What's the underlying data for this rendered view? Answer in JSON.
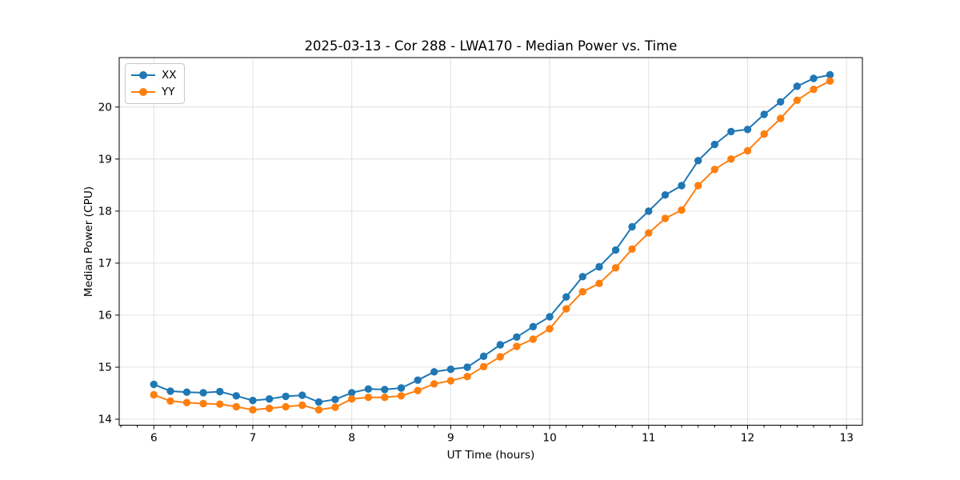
{
  "chart_data": {
    "type": "line",
    "title": "2025-03-13 - Cor 288 - LWA170 - Median Power vs. Time",
    "xlabel": "UT Time (hours)",
    "ylabel": "Median Power (CPU)",
    "x": [
      6.0,
      6.167,
      6.333,
      6.5,
      6.667,
      6.833,
      7.0,
      7.167,
      7.333,
      7.5,
      7.667,
      7.833,
      8.0,
      8.167,
      8.333,
      8.5,
      8.667,
      8.833,
      9.0,
      9.167,
      9.333,
      9.5,
      9.667,
      9.833,
      10.0,
      10.167,
      10.333,
      10.5,
      10.667,
      10.833,
      11.0,
      11.167,
      11.333,
      11.5,
      11.667,
      11.833,
      12.0,
      12.167,
      12.333,
      12.5,
      12.667,
      12.833
    ],
    "series": [
      {
        "name": "XX",
        "color": "#1f77b4",
        "values": [
          14.67,
          14.54,
          14.52,
          14.51,
          14.53,
          14.45,
          14.36,
          14.39,
          14.44,
          14.46,
          14.33,
          14.38,
          14.51,
          14.58,
          14.57,
          14.6,
          14.75,
          14.91,
          14.96,
          15.0,
          15.21,
          15.43,
          15.58,
          15.78,
          15.97,
          16.35,
          16.74,
          16.93,
          17.25,
          17.7,
          18.0,
          18.31,
          18.49,
          18.97,
          19.28,
          19.53,
          19.57,
          19.86,
          20.1,
          20.4,
          20.55,
          20.62
        ]
      },
      {
        "name": "YY",
        "color": "#ff7f0e",
        "values": [
          14.47,
          14.35,
          14.32,
          14.3,
          14.29,
          14.24,
          14.18,
          14.21,
          14.24,
          14.27,
          14.18,
          14.23,
          14.39,
          14.42,
          14.42,
          14.45,
          14.55,
          14.68,
          14.74,
          14.82,
          15.01,
          15.2,
          15.4,
          15.54,
          15.74,
          16.12,
          16.45,
          16.61,
          16.91,
          17.27,
          17.58,
          17.86,
          18.02,
          18.49,
          18.8,
          19.0,
          19.16,
          19.48,
          19.78,
          20.13,
          20.34,
          20.5
        ]
      }
    ],
    "xlim": [
      5.65,
      13.16
    ],
    "ylim": [
      13.885,
      20.95
    ],
    "xticks": [
      6,
      7,
      8,
      9,
      10,
      11,
      12,
      13
    ],
    "yticks": [
      14,
      15,
      16,
      17,
      18,
      19,
      20
    ],
    "x_minor_step": 0.1667,
    "grid": true,
    "grid_color": "#e0e0e0",
    "spine_color": "#000000",
    "legend_position": "upper-left",
    "marker": "o",
    "legend_entries": [
      "XX",
      "YY"
    ]
  }
}
